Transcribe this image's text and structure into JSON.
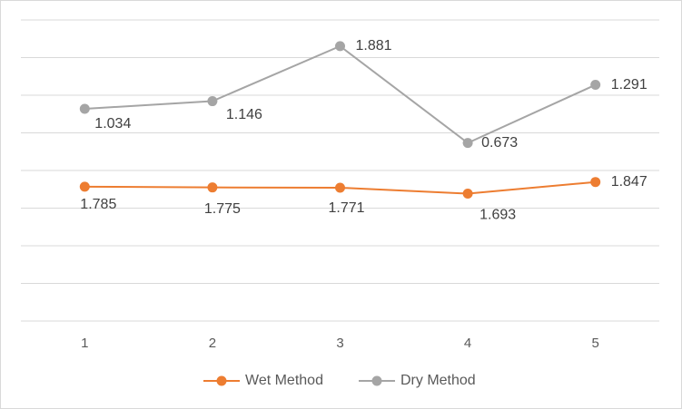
{
  "chart_data": {
    "type": "line",
    "stacked": true,
    "categories": [
      "1",
      "2",
      "3",
      "4",
      "5"
    ],
    "series": [
      {
        "name": "Wet Method",
        "values": [
          1.785,
          1.775,
          1.771,
          1.693,
          1.847
        ],
        "color": "#ED7D31"
      },
      {
        "name": "Dry Method",
        "values": [
          1.034,
          1.146,
          1.881,
          0.673,
          1.291
        ],
        "color": "#A5A5A5"
      }
    ],
    "ylim": [
      0,
      4
    ],
    "y_grid_step": 0.5,
    "y_axis_labels_shown": false,
    "grid": true,
    "legend": "bottom",
    "title": "",
    "xlabel": "",
    "ylabel": ""
  }
}
